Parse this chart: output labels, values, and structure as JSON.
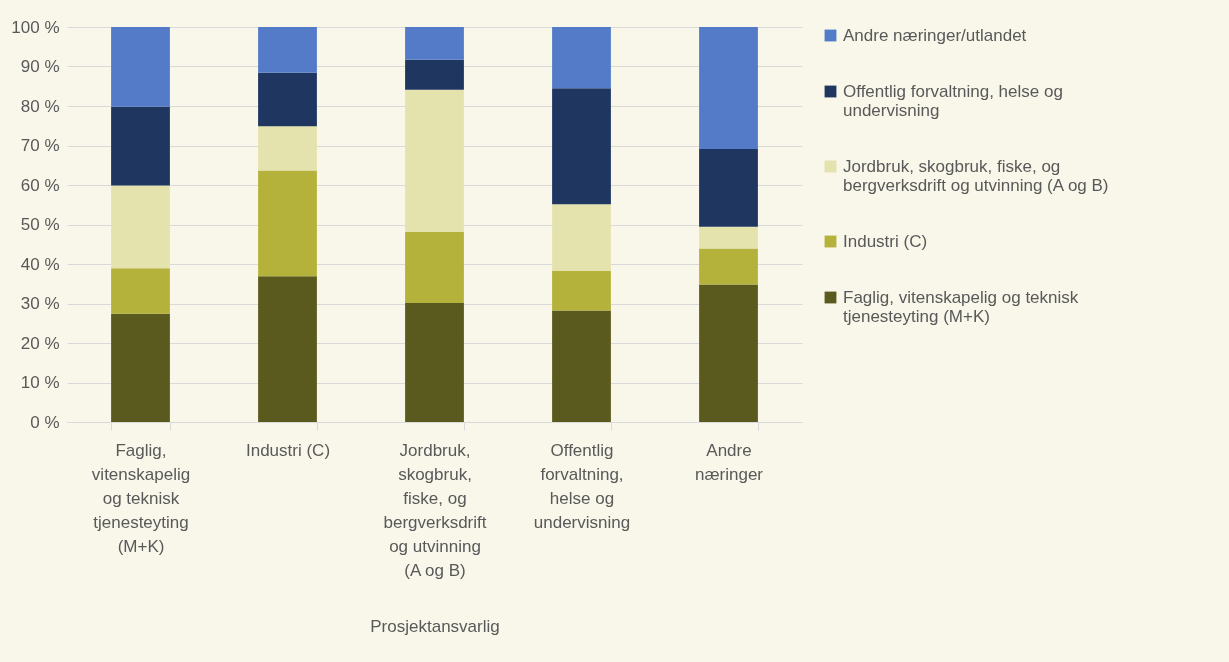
{
  "chart_data": {
    "type": "bar",
    "stacked": true,
    "xlabel": "Prosjektansvarlig",
    "categories": [
      "Faglig, vitenskapelig og teknisk tjenesteyting (M+K)",
      "Industri (C)",
      "Jordbruk, skogbruk, fiske, og bergverksdrift og utvinning (A og B)",
      "Offentlig forvaltning, helse og undervisning",
      "Andre næringer"
    ],
    "series": [
      {
        "name": "Faglig, vitenskapelig og teknisk tjenesteyting (M+K)",
        "color": "#5b5a1e",
        "values": [
          27.4,
          36.9,
          30.1,
          28.2,
          34.8
        ]
      },
      {
        "name": "Industri (C)",
        "color": "#b5b23b",
        "values": [
          11.5,
          26.8,
          18,
          10,
          9.1
        ]
      },
      {
        "name": "Jordbruk, skogbruk, fiske, og bergverksdrift og utvinning (A og B)",
        "color": "#e4e3ad",
        "values": [
          21,
          11.2,
          36,
          16.9,
          5.5
        ]
      },
      {
        "name": "Offentlig forvaltning, helse og undervisning",
        "color": "#1f3660",
        "values": [
          19.9,
          13.5,
          7.6,
          29.4,
          19.7
        ]
      },
      {
        "name": "Andre næringer/utlandet",
        "color": "#547bc7",
        "values": [
          20.2,
          11.6,
          8.3,
          15.5,
          30.9
        ]
      }
    ],
    "ylim": [
      0,
      100
    ],
    "yticks": [
      {
        "value": 0,
        "label": "0 %"
      },
      {
        "value": 10,
        "label": "10 %"
      },
      {
        "value": 20,
        "label": "20 %"
      },
      {
        "value": 30,
        "label": "30 %"
      },
      {
        "value": 40,
        "label": "40 %"
      },
      {
        "value": 50,
        "label": "50 %"
      },
      {
        "value": 60,
        "label": "60 %"
      },
      {
        "value": 70,
        "label": "70 %"
      },
      {
        "value": 80,
        "label": "80 %"
      },
      {
        "value": 90,
        "label": "90 %"
      },
      {
        "value": 100,
        "label": "100 %"
      }
    ],
    "grid": "y",
    "legend": "right"
  }
}
